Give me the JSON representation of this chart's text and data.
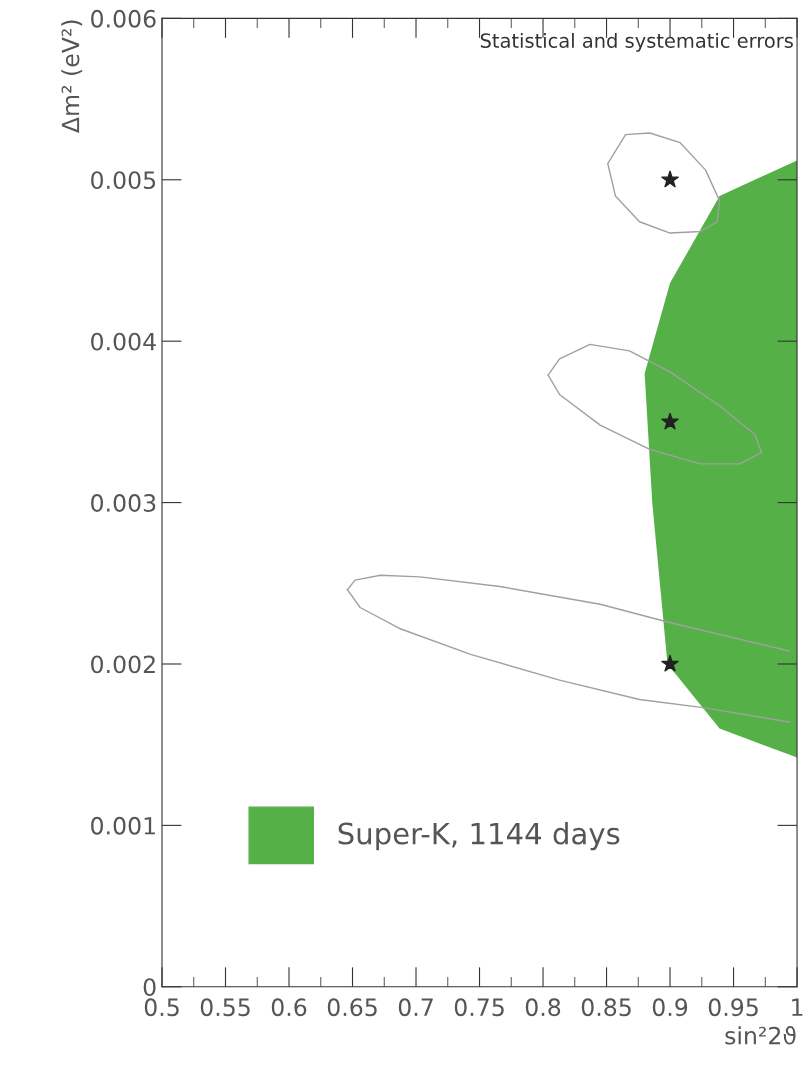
{
  "chart_data": {
    "type": "line",
    "xlabel": "sin²2ϑ",
    "ylabel": "Δm² (eV²)",
    "annotations": [
      "Statistical and systematic errors"
    ],
    "xlim": [
      0.5,
      1
    ],
    "xticks": [
      0.5,
      0.55,
      0.6,
      0.65,
      0.7,
      0.75,
      0.8,
      0.85,
      0.9,
      0.95,
      1
    ],
    "ylim": [
      0,
      0.006
    ],
    "yticks": [
      0,
      0.001,
      0.002,
      0.003,
      0.004,
      0.005,
      0.006
    ],
    "grid": false,
    "legend": "bottom left",
    "series": [
      {
        "type": "area",
        "name": "Super-K, 1144 days",
        "color": "#55b047",
        "x": [
          1.0,
          0.939,
          0.9,
          0.88,
          0.886,
          0.898,
          0.939,
          1.0
        ],
        "values": [
          0.00512,
          0.0049,
          0.00436,
          0.0038,
          0.003,
          0.002,
          0.0016,
          0.00142
        ]
      },
      {
        "color": "#a0a0a0",
        "x": [
          0.851,
          0.865,
          0.884,
          0.908,
          0.928,
          0.939
        ],
        "values": [
          0.0051,
          0.00528,
          0.00529,
          0.00523,
          0.00506,
          0.00487
        ]
      },
      {
        "color": "#a0a0a0",
        "x": [
          0.851,
          0.857,
          0.876,
          0.9,
          0.924,
          0.937,
          0.939
        ],
        "values": [
          0.0051,
          0.0049,
          0.00474,
          0.00467,
          0.00468,
          0.00474,
          0.00487
        ]
      },
      {
        "color": "#a0a0a0",
        "x": [
          0.804,
          0.813,
          0.837,
          0.868,
          0.9,
          0.939,
          0.967,
          0.972
        ],
        "values": [
          0.00379,
          0.00389,
          0.00398,
          0.00394,
          0.00381,
          0.0036,
          0.00342,
          0.00331
        ]
      },
      {
        "color": "#a0a0a0",
        "x": [
          0.804,
          0.813,
          0.845,
          0.884,
          0.924,
          0.955,
          0.972
        ],
        "values": [
          0.00379,
          0.00367,
          0.00348,
          0.00333,
          0.00324,
          0.00324,
          0.00331
        ]
      },
      {
        "color": "#a0a0a0",
        "x": [
          0.646,
          0.652,
          0.672,
          0.703,
          0.766,
          0.845,
          0.898,
          0.994
        ],
        "values": [
          0.00246,
          0.00252,
          0.00255,
          0.00254,
          0.00248,
          0.00237,
          0.00226,
          0.00208
        ]
      },
      {
        "color": "#a0a0a0",
        "x": [
          0.646,
          0.656,
          0.687,
          0.743,
          0.813,
          0.876,
          0.926,
          0.994
        ],
        "values": [
          0.00246,
          0.00235,
          0.00222,
          0.00206,
          0.0019,
          0.00178,
          0.00173,
          0.00164
        ]
      },
      {
        "type": "scatter",
        "color": "#222222",
        "marker": "star",
        "x": [
          0.9,
          0.9,
          0.9
        ],
        "values": [
          0.005,
          0.0035,
          0.002
        ]
      }
    ]
  }
}
